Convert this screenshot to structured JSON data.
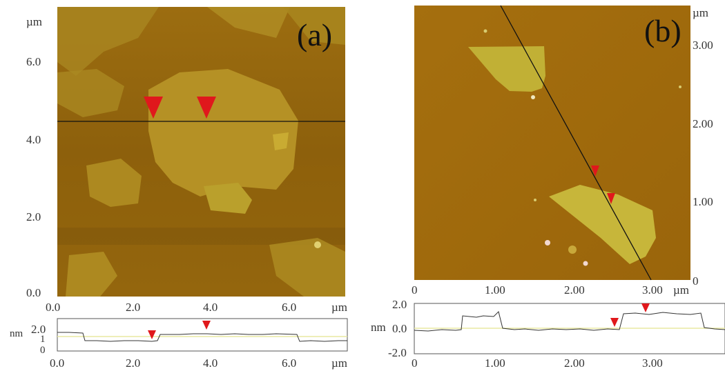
{
  "figure": {
    "panel_a": {
      "label": "(a)",
      "image": {
        "y_unit": "µm",
        "y_ticks": [
          "6.0",
          "4.0",
          "2.0",
          "0.0"
        ],
        "x_ticks": [
          "0.0",
          "2.0",
          "4.0",
          "6.0"
        ],
        "x_unit": "µm"
      },
      "profile": {
        "y_unit": "nm",
        "y_ticks": [
          "2.0",
          "1",
          "0"
        ],
        "x_ticks": [
          "0.0",
          "2.0",
          "4.0",
          "6.0"
        ],
        "x_unit": "µm"
      }
    },
    "panel_b": {
      "label": "(b)",
      "image": {
        "y_unit": "µm",
        "y_ticks": [
          "3.00",
          "2.00",
          "1.00",
          "0"
        ],
        "x_ticks": [
          "0",
          "1.00",
          "2.00",
          "3.00"
        ],
        "x_unit": "µm"
      },
      "profile": {
        "y_unit": "nm",
        "y_ticks": [
          "2.0",
          "0.0",
          "-2.0"
        ],
        "x_ticks": [
          "0",
          "1.00",
          "2.00",
          "3.00"
        ]
      }
    },
    "colors": {
      "afm_dark": "#8a5a0c",
      "afm_mid": "#a0720f",
      "flake": "#b89a2a",
      "flake_b": "#c4b33a",
      "marker": "#e0181c",
      "baseline": "#e8e8a0"
    }
  }
}
